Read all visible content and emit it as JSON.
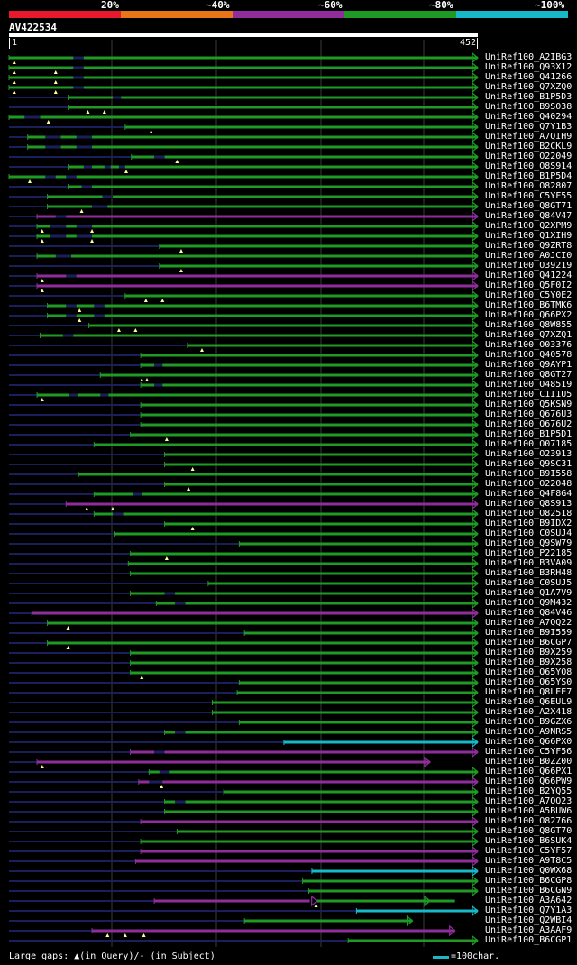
{
  "legend": {
    "labels": [
      "20%",
      "~40%",
      "~60%",
      "~80%",
      "~100%"
    ],
    "colors": [
      "#e8192c",
      "#e87518",
      "#8f2e9b",
      "#1f9a24",
      "#17b8c8"
    ]
  },
  "query": {
    "name": "AV422534",
    "start": "1",
    "end": "452",
    "length": 452
  },
  "footer": {
    "note": "Large gaps: ▲(in Query)/- (in Subject)",
    "scale_note": "=100char."
  },
  "hits": [
    {
      "label": "UniRef100_A2IBG3",
      "start": 0,
      "color": "green",
      "gaps": [
        [
          62,
          72
        ]
      ],
      "qmarks": [
        5
      ]
    },
    {
      "label": "UniRef100_Q93X12",
      "start": 0,
      "color": "green",
      "gaps": [
        [
          62,
          72
        ]
      ],
      "qmarks": [
        5,
        45
      ]
    },
    {
      "label": "UniRef100_Q41266",
      "start": 0,
      "color": "green",
      "gaps": [
        [
          62,
          72
        ]
      ],
      "qmarks": [
        5,
        45
      ]
    },
    {
      "label": "UniRef100_Q7XZQ0",
      "start": 0,
      "color": "green",
      "gaps": [
        [
          62,
          72
        ]
      ],
      "qmarks": [
        5,
        45
      ]
    },
    {
      "label": "UniRef100_B1P5D3",
      "start": 57,
      "color": "green",
      "gaps": [
        [
          100,
          108
        ]
      ],
      "qmarks": []
    },
    {
      "label": "UniRef100_B9S038",
      "start": 57,
      "color": "green",
      "gaps": [],
      "qmarks": [
        76,
        92
      ]
    },
    {
      "label": "UniRef100_Q40294",
      "start": 0,
      "color": "green",
      "gaps": [
        [
          15,
          30
        ]
      ],
      "qmarks": [
        38
      ]
    },
    {
      "label": "UniRef100_Q7Y1B3",
      "start": 112,
      "color": "green",
      "gaps": [],
      "qmarks": [
        137
      ]
    },
    {
      "label": "UniRef100_A7QIH9",
      "start": 18,
      "color": "green",
      "gaps": [
        [
          35,
          50
        ],
        [
          65,
          80
        ]
      ],
      "qmarks": []
    },
    {
      "label": "UniRef100_B2CKL9",
      "start": 18,
      "color": "green",
      "gaps": [
        [
          35,
          50
        ],
        [
          65,
          80
        ]
      ],
      "qmarks": []
    },
    {
      "label": "UniRef100_O22049",
      "start": 118,
      "color": "green",
      "gaps": [
        [
          140,
          150
        ]
      ],
      "qmarks": [
        162
      ]
    },
    {
      "label": "UniRef100_O8S914",
      "start": 57,
      "color": "green",
      "gaps": [
        [
          72,
          80
        ],
        [
          92,
          98
        ],
        [
          106,
          112
        ]
      ],
      "qmarks": [
        113
      ]
    },
    {
      "label": "UniRef100_B1P5D4",
      "start": 0,
      "color": "green",
      "gaps": [
        [
          35,
          45
        ],
        [
          55,
          65
        ]
      ],
      "qmarks": [
        20
      ]
    },
    {
      "label": "UniRef100_O82807",
      "start": 57,
      "color": "green",
      "gaps": [
        [
          70,
          80
        ]
      ],
      "qmarks": []
    },
    {
      "label": "UniRef100_C5YF55",
      "start": 37,
      "color": "green",
      "gaps": [
        [
          90,
          100
        ]
      ],
      "qmarks": []
    },
    {
      "label": "UniRef100_Q8GT71",
      "start": 37,
      "color": "green",
      "gaps": [
        [
          80,
          95
        ]
      ],
      "qmarks": [
        70
      ]
    },
    {
      "label": "UniRef100_Q84V47",
      "start": 27,
      "color": "purple",
      "gaps": [
        [
          45,
          55
        ]
      ],
      "qmarks": []
    },
    {
      "label": "UniRef100_Q2XPM9",
      "start": 27,
      "color": "green",
      "gaps": [
        [
          40,
          55
        ],
        [
          65,
          80
        ]
      ],
      "qmarks": [
        32,
        80
      ]
    },
    {
      "label": "UniRef100_Q1XIH9",
      "start": 27,
      "color": "green",
      "gaps": [
        [
          40,
          55
        ],
        [
          65,
          80
        ]
      ],
      "qmarks": [
        32,
        80
      ]
    },
    {
      "label": "UniRef100_Q9ZRT8",
      "start": 145,
      "color": "green",
      "gaps": [],
      "qmarks": [
        166
      ]
    },
    {
      "label": "UniRef100_A0JCI0",
      "start": 27,
      "color": "green",
      "gaps": [
        [
          45,
          60
        ]
      ],
      "qmarks": []
    },
    {
      "label": "UniRef100_O39219",
      "start": 145,
      "color": "green",
      "gaps": [],
      "qmarks": [
        166
      ]
    },
    {
      "label": "UniRef100_Q41224",
      "start": 27,
      "color": "purple",
      "gaps": [
        [
          55,
          65
        ]
      ],
      "qmarks": [
        32
      ]
    },
    {
      "label": "UniRef100_Q5F0I2",
      "start": 27,
      "color": "purple",
      "gaps": [],
      "qmarks": [
        32
      ]
    },
    {
      "label": "UniRef100_C5Y0E2",
      "start": 112,
      "color": "green",
      "gaps": [],
      "qmarks": [
        132,
        148
      ]
    },
    {
      "label": "UniRef100_B6TMK6",
      "start": 37,
      "color": "green",
      "gaps": [
        [
          55,
          65
        ],
        [
          82,
          92
        ]
      ],
      "qmarks": [
        68
      ]
    },
    {
      "label": "UniRef100_Q66PX2",
      "start": 37,
      "color": "green",
      "gaps": [
        [
          55,
          65
        ],
        [
          82,
          92
        ]
      ],
      "qmarks": [
        68
      ]
    },
    {
      "label": "UniRef100_Q8W855",
      "start": 77,
      "color": "green",
      "gaps": [],
      "qmarks": [
        106,
        122
      ]
    },
    {
      "label": "UniRef100_Q7XZQ1",
      "start": 30,
      "color": "green",
      "gaps": [
        [
          52,
          62
        ]
      ],
      "qmarks": []
    },
    {
      "label": "UniRef100_O03376",
      "start": 172,
      "color": "green",
      "gaps": [],
      "qmarks": [
        186
      ]
    },
    {
      "label": "UniRef100_Q40578",
      "start": 127,
      "color": "green",
      "gaps": [],
      "qmarks": []
    },
    {
      "label": "UniRef100_Q9AYP1",
      "start": 127,
      "color": "green",
      "gaps": [
        [
          140,
          148
        ]
      ],
      "qmarks": []
    },
    {
      "label": "UniRef100_Q8GT27",
      "start": 88,
      "color": "green",
      "gaps": [],
      "qmarks": [
        128,
        133
      ]
    },
    {
      "label": "UniRef100_O48519",
      "start": 127,
      "color": "green",
      "gaps": [
        [
          140,
          148
        ]
      ],
      "qmarks": []
    },
    {
      "label": "UniRef100_C1I1U5",
      "start": 27,
      "color": "green",
      "gaps": [
        [
          58,
          66
        ],
        [
          88,
          96
        ]
      ],
      "qmarks": [
        32
      ]
    },
    {
      "label": "UniRef100_Q5KSN9",
      "start": 127,
      "color": "green",
      "gaps": [],
      "qmarks": []
    },
    {
      "label": "UniRef100_Q676U3",
      "start": 127,
      "color": "green",
      "gaps": [],
      "qmarks": []
    },
    {
      "label": "UniRef100_Q676U2",
      "start": 127,
      "color": "green",
      "gaps": [],
      "qmarks": []
    },
    {
      "label": "UniRef100_B1P5D1",
      "start": 117,
      "color": "green",
      "gaps": [],
      "qmarks": [
        152
      ]
    },
    {
      "label": "UniRef100_O07185",
      "start": 82,
      "color": "green",
      "gaps": [],
      "qmarks": []
    },
    {
      "label": "UniRef100_O23913",
      "start": 150,
      "color": "green",
      "gaps": [],
      "qmarks": []
    },
    {
      "label": "UniRef100_Q9SC31",
      "start": 150,
      "color": "green",
      "gaps": [],
      "qmarks": [
        177
      ]
    },
    {
      "label": "UniRef100_B9I558",
      "start": 67,
      "color": "green",
      "gaps": [],
      "qmarks": []
    },
    {
      "label": "UniRef100_O22048",
      "start": 150,
      "color": "green",
      "gaps": [],
      "qmarks": [
        173
      ]
    },
    {
      "label": "UniRef100_Q4F8G4",
      "start": 82,
      "color": "green",
      "gaps": [
        [
          120,
          128
        ]
      ],
      "qmarks": []
    },
    {
      "label": "UniRef100_Q8S913",
      "start": 55,
      "color": "purple",
      "gaps": [],
      "qmarks": [
        75,
        100
      ]
    },
    {
      "label": "UniRef100_O82518",
      "start": 82,
      "color": "green",
      "gaps": [
        [
          100,
          110
        ]
      ],
      "qmarks": []
    },
    {
      "label": "UniRef100_B9IDX2",
      "start": 150,
      "color": "green",
      "gaps": [],
      "qmarks": [
        177
      ]
    },
    {
      "label": "UniRef100_C0SUJ4",
      "start": 102,
      "color": "green",
      "gaps": [],
      "qmarks": []
    },
    {
      "label": "UniRef100_Q9SW79",
      "start": 222,
      "color": "green",
      "gaps": [],
      "qmarks": []
    },
    {
      "label": "UniRef100_P22185",
      "start": 117,
      "color": "green",
      "gaps": [],
      "qmarks": [
        152
      ]
    },
    {
      "label": "UniRef100_B3VA09",
      "start": 115,
      "color": "green",
      "gaps": [],
      "qmarks": []
    },
    {
      "label": "UniRef100_B3RH48",
      "start": 117,
      "color": "green",
      "gaps": [],
      "qmarks": []
    },
    {
      "label": "UniRef100_C0SUJ5",
      "start": 192,
      "color": "green",
      "gaps": [],
      "qmarks": []
    },
    {
      "label": "UniRef100_Q1A7V9",
      "start": 117,
      "color": "green",
      "gaps": [
        [
          150,
          160
        ]
      ],
      "qmarks": []
    },
    {
      "label": "UniRef100_Q9M432",
      "start": 142,
      "color": "green",
      "gaps": [
        [
          160,
          170
        ]
      ],
      "qmarks": []
    },
    {
      "label": "UniRef100_Q84V46",
      "start": 22,
      "color": "purple",
      "gaps": [],
      "qmarks": []
    },
    {
      "label": "UniRef100_A7QQ22",
      "start": 37,
      "color": "green",
      "gaps": [],
      "qmarks": [
        57
      ]
    },
    {
      "label": "UniRef100_B9I559",
      "start": 227,
      "color": "green",
      "gaps": [],
      "qmarks": []
    },
    {
      "label": "UniRef100_B6CGP7",
      "start": 37,
      "color": "green",
      "gaps": [],
      "qmarks": [
        57
      ]
    },
    {
      "label": "UniRef100_B9X259",
      "start": 117,
      "color": "green",
      "gaps": [],
      "qmarks": []
    },
    {
      "label": "UniRef100_B9X258",
      "start": 117,
      "color": "green",
      "gaps": [],
      "qmarks": []
    },
    {
      "label": "UniRef100_Q65YQ8",
      "start": 117,
      "color": "green",
      "gaps": [],
      "qmarks": [
        128
      ]
    },
    {
      "label": "UniRef100_Q65YS0",
      "start": 222,
      "color": "green",
      "gaps": [],
      "qmarks": []
    },
    {
      "label": "UniRef100_Q8LEE7",
      "start": 220,
      "color": "green",
      "gaps": [],
      "qmarks": []
    },
    {
      "label": "UniRef100_Q6EUL9",
      "start": 196,
      "color": "green",
      "gaps": [],
      "qmarks": []
    },
    {
      "label": "UniRef100_A2X418",
      "start": 196,
      "color": "green",
      "gaps": [],
      "qmarks": []
    },
    {
      "label": "UniRef100_B9GZX6",
      "start": 222,
      "color": "green",
      "gaps": [],
      "qmarks": []
    },
    {
      "label": "UniRef100_A9NRS5",
      "start": 150,
      "color": "green",
      "gaps": [
        [
          160,
          170
        ]
      ],
      "qmarks": []
    },
    {
      "label": "UniRef100_Q66PX0",
      "start": 265,
      "color": "cyan",
      "gaps": [],
      "qmarks": []
    },
    {
      "label": "UniRef100_C5YF56",
      "start": 117,
      "color": "purple",
      "gaps": [
        [
          140,
          150
        ]
      ],
      "qmarks": []
    },
    {
      "label": "UniRef100_B0ZZ00",
      "start": 27,
      "color": "purple",
      "gaps": [],
      "qmarks": [
        32
      ],
      "end": 406
    },
    {
      "label": "UniRef100_Q66PX1",
      "start": 135,
      "color": "green",
      "gaps": [
        [
          145,
          155
        ]
      ],
      "qmarks": []
    },
    {
      "label": "UniRef100_Q66PW9",
      "start": 125,
      "color": "purple",
      "gaps": [
        [
          135,
          148
        ]
      ],
      "qmarks": [
        147
      ]
    },
    {
      "label": "UniRef100_B2YQ55",
      "start": 207,
      "color": "green",
      "gaps": [],
      "qmarks": []
    },
    {
      "label": "UniRef100_A7QQ23",
      "start": 150,
      "color": "green",
      "gaps": [
        [
          160,
          170
        ]
      ],
      "qmarks": []
    },
    {
      "label": "UniRef100_A5BUW6",
      "start": 150,
      "color": "green",
      "gaps": [],
      "qmarks": []
    },
    {
      "label": "UniRef100_O82766",
      "start": 127,
      "color": "purple",
      "gaps": [],
      "qmarks": []
    },
    {
      "label": "UniRef100_Q8GT70",
      "start": 162,
      "color": "green",
      "gaps": [],
      "qmarks": []
    },
    {
      "label": "UniRef100_B6SUK4",
      "start": 127,
      "color": "green",
      "gaps": [],
      "qmarks": []
    },
    {
      "label": "UniRef100_C5YF57",
      "start": 127,
      "color": "purple",
      "gaps": [],
      "qmarks": []
    },
    {
      "label": "UniRef100_A9T8C5",
      "start": 122,
      "color": "purple",
      "gaps": [],
      "qmarks": []
    },
    {
      "label": "UniRef100_Q0WX68",
      "start": 292,
      "color": "cyan",
      "gaps": [],
      "qmarks": []
    },
    {
      "label": "UniRef100_B6CGP8",
      "start": 283,
      "color": "green",
      "gaps": [],
      "qmarks": []
    },
    {
      "label": "UniRef100_B6CGN9",
      "start": 289,
      "color": "green",
      "gaps": [],
      "qmarks": []
    },
    {
      "label": "UniRef100_A3A642",
      "start": 140,
      "color": "purple",
      "gaps": [],
      "qmarks": [
        296
      ],
      "end": 406,
      "segs": [
        [
          140,
          290,
          "purple"
        ],
        [
          296,
          430,
          "green"
        ]
      ],
      "arrows": [
        297,
        406
      ]
    },
    {
      "label": "UniRef100_Q7Y1A3",
      "start": 335,
      "color": "cyan",
      "gaps": [],
      "qmarks": []
    },
    {
      "label": "UniRef100_Q2WBI4",
      "start": 227,
      "color": "green",
      "gaps": [],
      "qmarks": [],
      "end": 389
    },
    {
      "label": "UniRef100_A3AAF9",
      "start": 80,
      "color": "purple",
      "gaps": [],
      "qmarks": [
        95,
        112,
        130
      ],
      "end": 430
    },
    {
      "label": "UniRef100_B6CGP1",
      "start": 327,
      "color": "green",
      "gaps": [],
      "qmarks": []
    }
  ]
}
